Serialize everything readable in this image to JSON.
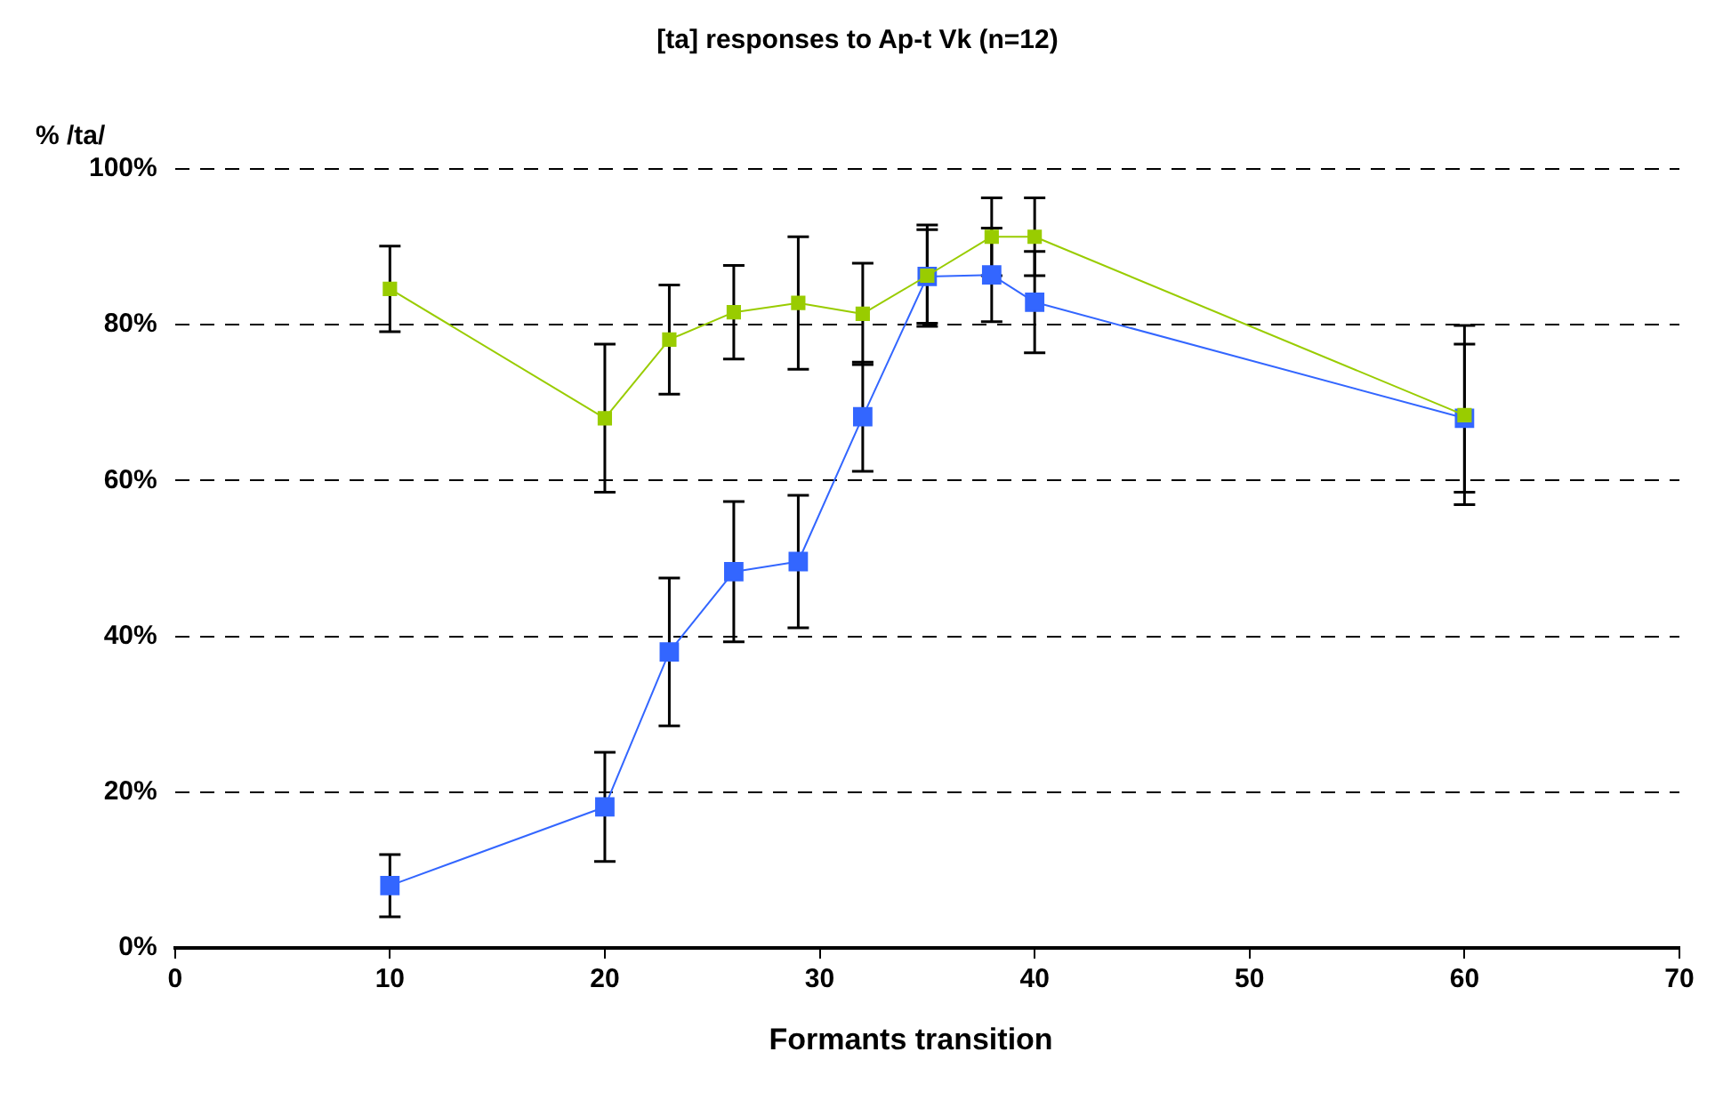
{
  "chart_data": {
    "type": "line",
    "title": "[ta] responses to Ap-t Vk (n=12)",
    "xlabel": "Formants transition",
    "ylabel": "% /ta/",
    "x": [
      10,
      20,
      23,
      26,
      29,
      32,
      35,
      38,
      40,
      60
    ],
    "series": [
      {
        "color": "#99cc00",
        "values": [
          84.6,
          68,
          78.1,
          81.6,
          82.8,
          81.4,
          86.3,
          91.3,
          91.3,
          68.4
        ],
        "errors": [
          5.5,
          9.5,
          7,
          6,
          8.5,
          6.5,
          6.5,
          5,
          5,
          11.5
        ]
      },
      {
        "color": "#3366ff",
        "values": [
          8,
          18.1,
          38,
          48.3,
          49.6,
          68.2,
          86.2,
          86.4,
          82.9,
          68
        ],
        "errors": [
          4,
          7,
          9.5,
          9,
          8.5,
          7,
          6,
          6,
          6.5,
          9.5
        ]
      }
    ],
    "xlim": [
      0,
      70
    ],
    "xticks": [
      0,
      10,
      20,
      30,
      40,
      50,
      60,
      70
    ],
    "ylim": [
      0,
      100
    ],
    "yticks": [
      {
        "value": 0,
        "label": "0%"
      },
      {
        "value": 20,
        "label": "20%"
      },
      {
        "value": 40,
        "label": "40%"
      },
      {
        "value": 60,
        "label": "60%"
      },
      {
        "value": 80,
        "label": "80%"
      },
      {
        "value": 100,
        "label": "100%"
      }
    ],
    "grid": "y",
    "legend": false,
    "marker": "square",
    "line_style": "solid"
  }
}
